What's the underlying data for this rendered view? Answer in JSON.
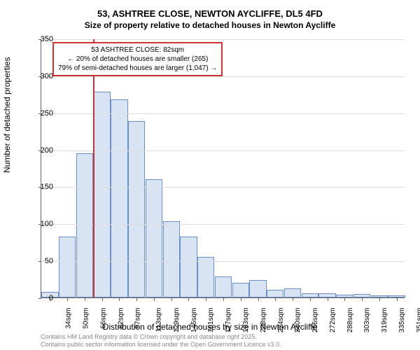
{
  "header": {
    "title": "53, ASHTREE CLOSE, NEWTON AYCLIFFE, DL5 4FD",
    "subtitle": "Size of property relative to detached houses in Newton Aycliffe"
  },
  "chart": {
    "type": "histogram",
    "ylabel": "Number of detached properties",
    "xlabel": "Distribution of detached houses by size in Newton Aycliffe",
    "ylim": [
      0,
      350
    ],
    "ytick_step": 50,
    "yticks": [
      0,
      50,
      100,
      150,
      200,
      250,
      300,
      350
    ],
    "x_categories": [
      "34sqm",
      "50sqm",
      "66sqm",
      "82sqm",
      "97sqm",
      "113sqm",
      "129sqm",
      "145sqm",
      "161sqm",
      "177sqm",
      "193sqm",
      "208sqm",
      "224sqm",
      "240sqm",
      "256sqm",
      "272sqm",
      "288sqm",
      "303sqm",
      "319sqm",
      "335sqm",
      "351sqm"
    ],
    "values": [
      8,
      82,
      195,
      278,
      268,
      238,
      160,
      103,
      82,
      55,
      28,
      20,
      24,
      10,
      12,
      6,
      6,
      4,
      5,
      3,
      3
    ],
    "bar_fill": "#d8e4f4",
    "bar_stroke": "#6a8fc4",
    "grid_color": "#dddddd",
    "axis_color": "#666666",
    "background_color": "#ffffff",
    "reference_line": {
      "position_index": 3,
      "color": "#cc3333"
    },
    "callout": {
      "line1": "53 ASHTREE CLOSE: 82sqm",
      "line2": "← 20% of detached houses are smaller (265)",
      "line3": "79% of semi-detached houses are larger (1,047) →",
      "border_color": "#cc3333"
    }
  },
  "footer": {
    "line1": "Contains HM Land Registry data © Crown copyright and database right 2025.",
    "line2": "Contains public sector information licensed under the Open Government Licence v3.0."
  }
}
